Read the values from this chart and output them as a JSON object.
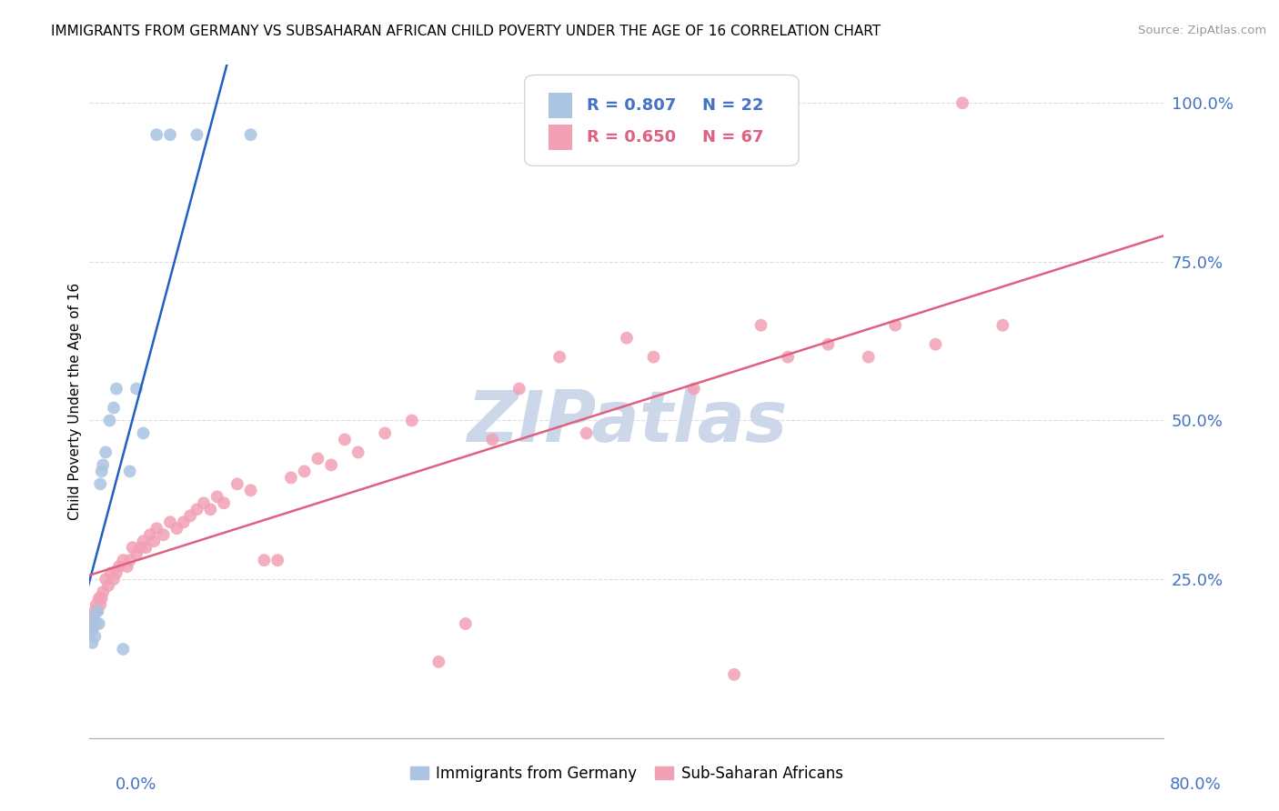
{
  "title": "IMMIGRANTS FROM GERMANY VS SUBSAHARAN AFRICAN CHILD POVERTY UNDER THE AGE OF 16 CORRELATION CHART",
  "source": "Source: ZipAtlas.com",
  "ylabel": "Child Poverty Under the Age of 16",
  "ylabel_ticks_right": [
    "100.0%",
    "75.0%",
    "50.0%",
    "25.0%"
  ],
  "legend1_R": "R = 0.807",
  "legend1_N": "N = 22",
  "legend2_R": "R = 0.650",
  "legend2_N": "N = 67",
  "legend_label1": "Immigrants from Germany",
  "legend_label2": "Sub-Saharan Africans",
  "blue_dot_color": "#aac4e2",
  "pink_dot_color": "#f2a0b5",
  "blue_line_color": "#2060c0",
  "pink_line_color": "#e06080",
  "blue_text_color": "#4472c4",
  "pink_text_color": "#e06080",
  "watermark_color": "#ccd8ea",
  "background_color": "#ffffff",
  "grid_color": "#dddddd",
  "axis_color": "#aaaaaa",
  "germany_x": [
    0.1,
    0.2,
    0.3,
    0.4,
    0.5,
    0.6,
    0.7,
    0.8,
    0.9,
    1.0,
    1.2,
    1.5,
    1.8,
    2.0,
    2.5,
    3.0,
    3.5,
    4.0,
    5.0,
    6.0,
    8.0,
    12.0
  ],
  "germany_y": [
    17,
    15,
    19,
    16,
    18,
    20,
    18,
    40,
    42,
    43,
    45,
    50,
    52,
    55,
    14,
    42,
    55,
    48,
    95,
    95,
    95,
    95
  ],
  "subsaharan_x": [
    0.1,
    0.2,
    0.3,
    0.4,
    0.5,
    0.6,
    0.7,
    0.8,
    0.9,
    1.0,
    1.2,
    1.4,
    1.6,
    1.8,
    2.0,
    2.2,
    2.5,
    2.8,
    3.0,
    3.2,
    3.5,
    3.8,
    4.0,
    4.2,
    4.5,
    4.8,
    5.0,
    5.5,
    6.0,
    6.5,
    7.0,
    7.5,
    8.0,
    8.5,
    9.0,
    9.5,
    10.0,
    11.0,
    12.0,
    13.0,
    14.0,
    15.0,
    16.0,
    17.0,
    18.0,
    19.0,
    20.0,
    22.0,
    24.0,
    26.0,
    28.0,
    30.0,
    32.0,
    35.0,
    37.0,
    40.0,
    42.0,
    45.0,
    48.0,
    50.0,
    52.0,
    55.0,
    58.0,
    60.0,
    63.0,
    65.0,
    68.0
  ],
  "subsaharan_y": [
    18,
    17,
    19,
    20,
    21,
    20,
    22,
    21,
    22,
    23,
    25,
    24,
    26,
    25,
    26,
    27,
    28,
    27,
    28,
    30,
    29,
    30,
    31,
    30,
    32,
    31,
    33,
    32,
    34,
    33,
    34,
    35,
    36,
    37,
    36,
    38,
    37,
    40,
    39,
    28,
    28,
    41,
    42,
    44,
    43,
    47,
    45,
    48,
    50,
    12,
    18,
    47,
    55,
    60,
    48,
    63,
    60,
    55,
    10,
    65,
    60,
    62,
    60,
    65,
    62,
    100,
    65
  ]
}
